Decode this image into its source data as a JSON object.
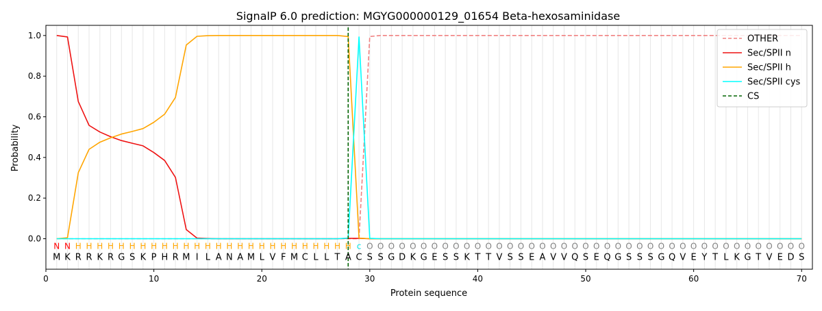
{
  "chart_data": {
    "type": "line",
    "title": "SignalP 6.0 prediction: MGYG000000129_01654 Beta-hexosaminidase",
    "xlabel": "Protein sequence",
    "ylabel": "Probability",
    "xlim": [
      0,
      71
    ],
    "ylim": [
      -0.15,
      1.05
    ],
    "xticks": [
      0,
      10,
      20,
      30,
      40,
      50,
      60,
      70
    ],
    "yticks": [
      0.0,
      0.2,
      0.4,
      0.6,
      0.8,
      1.0
    ],
    "grid": "vertical lines at each residue",
    "legend_position": "top-right",
    "sequence": [
      "M",
      "K",
      "R",
      "R",
      "K",
      "R",
      "G",
      "S",
      "K",
      "P",
      "H",
      "R",
      "M",
      "I",
      "L",
      "A",
      "N",
      "A",
      "M",
      "L",
      "V",
      "F",
      "M",
      "C",
      "L",
      "L",
      "T",
      "A",
      "C",
      "S",
      "S",
      "G",
      "D",
      "K",
      "G",
      "E",
      "S",
      "S",
      "K",
      "T",
      "T",
      "V",
      "S",
      "S",
      "E",
      "A",
      "V",
      "V",
      "Q",
      "S",
      "E",
      "Q",
      "G",
      "S",
      "S",
      "S",
      "G",
      "Q",
      "V",
      "E",
      "Y",
      "T",
      "L",
      "K",
      "G",
      "T",
      "V",
      "E",
      "D",
      "S"
    ],
    "region_labels": [
      "N",
      "N",
      "H",
      "H",
      "H",
      "H",
      "H",
      "H",
      "H",
      "H",
      "H",
      "H",
      "H",
      "H",
      "H",
      "H",
      "H",
      "H",
      "H",
      "H",
      "H",
      "H",
      "H",
      "H",
      "H",
      "H",
      "H",
      "H",
      "C",
      "O",
      "O",
      "O",
      "O",
      "O",
      "O",
      "O",
      "O",
      "O",
      "O",
      "O",
      "O",
      "O",
      "O",
      "O",
      "O",
      "O",
      "O",
      "O",
      "O",
      "O",
      "O",
      "O",
      "O",
      "O",
      "O",
      "O",
      "O",
      "O",
      "O",
      "O",
      "O",
      "O",
      "O",
      "O",
      "O",
      "O",
      "O",
      "O",
      "O",
      "O"
    ],
    "region_label_colors": {
      "N": "#ff0000",
      "H": "#ffa500",
      "C": "#00e5e5",
      "O": "#808080"
    },
    "series": [
      {
        "name": "OTHER",
        "color": "#f08080",
        "dash": "dashed",
        "x": [
          1,
          2,
          3,
          4,
          5,
          6,
          7,
          8,
          9,
          10,
          11,
          12,
          13,
          14,
          15,
          16,
          17,
          18,
          19,
          20,
          21,
          22,
          23,
          24,
          25,
          26,
          27,
          28,
          29,
          30,
          31,
          32,
          33,
          34,
          35,
          36,
          37,
          38,
          39,
          40,
          41,
          42,
          43,
          44,
          45,
          46,
          47,
          48,
          49,
          50,
          51,
          52,
          53,
          54,
          55,
          56,
          57,
          58,
          59,
          60,
          61,
          62,
          63,
          64,
          65,
          66,
          67,
          68,
          69,
          70
        ],
        "values": [
          0,
          0,
          0,
          0,
          0,
          0,
          0,
          0,
          0,
          0,
          0,
          0,
          0,
          0,
          0,
          0,
          0,
          0,
          0,
          0,
          0,
          0,
          0,
          0,
          0,
          0,
          0,
          0,
          0.0,
          0.995,
          1,
          1,
          1,
          1,
          1,
          1,
          1,
          1,
          1,
          1,
          1,
          1,
          1,
          1,
          1,
          1,
          1,
          1,
          1,
          1,
          1,
          1,
          1,
          1,
          1,
          1,
          1,
          1,
          1,
          1,
          1,
          1,
          1,
          1,
          1,
          1,
          1,
          1,
          1,
          1
        ]
      },
      {
        "name": "Sec/SPII n",
        "color": "#ee1111",
        "dash": "solid",
        "x": [
          1,
          2,
          3,
          4,
          5,
          6,
          7,
          8,
          9,
          10,
          11,
          12,
          13,
          14,
          15,
          16,
          17,
          18,
          19,
          20,
          21,
          22,
          23,
          24,
          25,
          26,
          27,
          28,
          29,
          30,
          31,
          32,
          33,
          34,
          35,
          36,
          37,
          38,
          39,
          40,
          41,
          42,
          43,
          44,
          45,
          46,
          47,
          48,
          49,
          50,
          51,
          52,
          53,
          54,
          55,
          56,
          57,
          58,
          59,
          60,
          61,
          62,
          63,
          64,
          65,
          66,
          67,
          68,
          69,
          70
        ],
        "values": [
          1.0,
          0.993,
          0.675,
          0.558,
          0.525,
          0.502,
          0.483,
          0.47,
          0.457,
          0.424,
          0.385,
          0.302,
          0.045,
          0.003,
          0.001,
          0,
          0,
          0,
          0,
          0,
          0,
          0,
          0,
          0,
          0,
          0,
          0,
          0.002,
          0.002,
          0,
          0,
          0,
          0,
          0,
          0,
          0,
          0,
          0,
          0,
          0,
          0,
          0,
          0,
          0,
          0,
          0,
          0,
          0,
          0,
          0,
          0,
          0,
          0,
          0,
          0,
          0,
          0,
          0,
          0,
          0,
          0,
          0,
          0,
          0,
          0,
          0,
          0,
          0,
          0,
          0
        ]
      },
      {
        "name": "Sec/SPII h",
        "color": "#ffa500",
        "dash": "solid",
        "x": [
          1,
          2,
          3,
          4,
          5,
          6,
          7,
          8,
          9,
          10,
          11,
          12,
          13,
          14,
          15,
          16,
          17,
          18,
          19,
          20,
          21,
          22,
          23,
          24,
          25,
          26,
          27,
          28,
          29,
          30,
          31,
          32,
          33,
          34,
          35,
          36,
          37,
          38,
          39,
          40,
          41,
          42,
          43,
          44,
          45,
          46,
          47,
          48,
          49,
          50,
          51,
          52,
          53,
          54,
          55,
          56,
          57,
          58,
          59,
          60,
          61,
          62,
          63,
          64,
          65,
          66,
          67,
          68,
          69,
          70
        ],
        "values": [
          0,
          0.005,
          0.325,
          0.44,
          0.475,
          0.497,
          0.515,
          0.528,
          0.542,
          0.573,
          0.613,
          0.695,
          0.953,
          0.996,
          0.999,
          1,
          1,
          1,
          1,
          1,
          1,
          1,
          1,
          1,
          1,
          1,
          1,
          0.995,
          0.003,
          0,
          0,
          0,
          0,
          0,
          0,
          0,
          0,
          0,
          0,
          0,
          0,
          0,
          0,
          0,
          0,
          0,
          0,
          0,
          0,
          0,
          0,
          0,
          0,
          0,
          0,
          0,
          0,
          0,
          0,
          0,
          0,
          0,
          0,
          0,
          0,
          0,
          0,
          0,
          0,
          0
        ]
      },
      {
        "name": "Sec/SPII cys",
        "color": "#00ffff",
        "dash": "solid",
        "x": [
          1,
          2,
          3,
          4,
          5,
          6,
          7,
          8,
          9,
          10,
          11,
          12,
          13,
          14,
          15,
          16,
          17,
          18,
          19,
          20,
          21,
          22,
          23,
          24,
          25,
          26,
          27,
          28,
          29,
          30,
          31,
          32,
          33,
          34,
          35,
          36,
          37,
          38,
          39,
          40,
          41,
          42,
          43,
          44,
          45,
          46,
          47,
          48,
          49,
          50,
          51,
          52,
          53,
          54,
          55,
          56,
          57,
          58,
          59,
          60,
          61,
          62,
          63,
          64,
          65,
          66,
          67,
          68,
          69,
          70
        ],
        "values": [
          0,
          0,
          0,
          0,
          0,
          0,
          0,
          0,
          0,
          0,
          0,
          0,
          0,
          0,
          0,
          0,
          0,
          0,
          0,
          0,
          0,
          0,
          0,
          0,
          0,
          0,
          0,
          0.003,
          0.993,
          0.002,
          0,
          0,
          0,
          0,
          0,
          0,
          0,
          0,
          0,
          0,
          0,
          0,
          0,
          0,
          0,
          0,
          0,
          0,
          0,
          0,
          0,
          0,
          0,
          0,
          0,
          0,
          0,
          0,
          0,
          0,
          0,
          0,
          0,
          0,
          0,
          0,
          0,
          0,
          0,
          0
        ]
      }
    ],
    "cs": {
      "name": "CS",
      "color": "#006400",
      "x": 28
    }
  }
}
